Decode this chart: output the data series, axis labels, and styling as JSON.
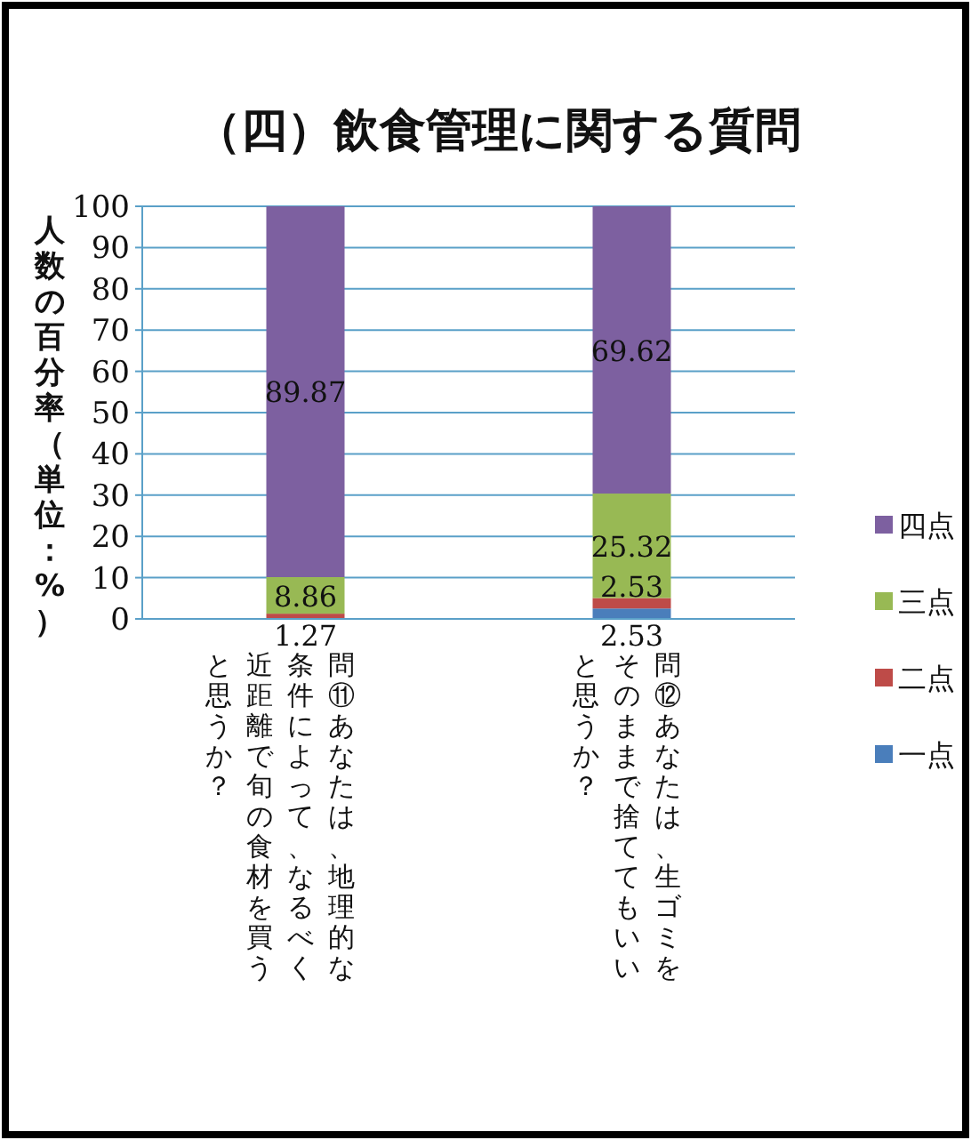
{
  "chart_data": {
    "type": "bar",
    "title": "（四）飲食管理に関する質問",
    "ylabel": "人数の百分率（単位：%）",
    "categories": [
      "問⑪あなたは、地理的な条件によって、なるべく近距離で旬の食材を買うと思うか？",
      "問⑫あなたは、生ゴミをそのままで捨ててもいいと思うか？"
    ],
    "series": [
      {
        "name": "一点",
        "color": "#4a7ebb",
        "values": [
          null,
          2.53
        ]
      },
      {
        "name": "二点",
        "color": "#be4b48",
        "values": [
          1.27,
          2.53
        ]
      },
      {
        "name": "三点",
        "color": "#98b954",
        "values": [
          8.86,
          25.32
        ]
      },
      {
        "name": "四点",
        "color": "#7d60a0",
        "values": [
          89.87,
          69.62
        ]
      }
    ],
    "stacked": true,
    "ylim": [
      0,
      100
    ],
    "yticks": [
      0,
      10,
      20,
      30,
      40,
      50,
      60,
      70,
      80,
      90,
      100
    ],
    "grid": "y",
    "legend": "right",
    "data_labels": true
  }
}
